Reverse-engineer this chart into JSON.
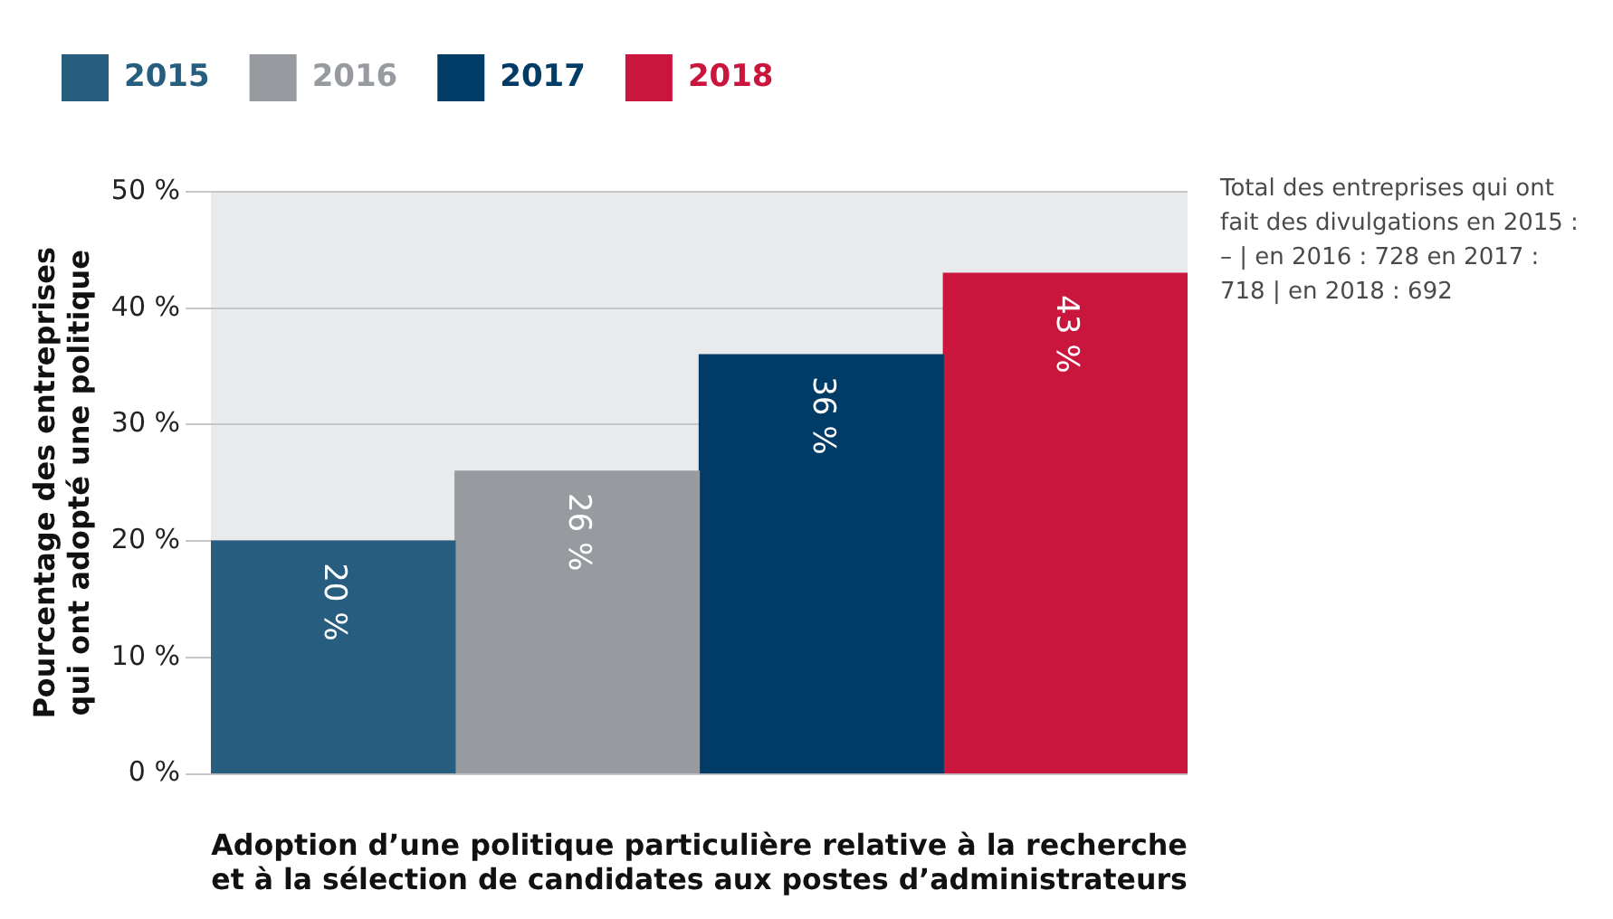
{
  "chart_data": {
    "type": "bar",
    "categories": [
      null
    ],
    "xlabel": "Adoption d’une politique particulière relative à la recherche et à la sélection de candidates aux postes d’administrateurs",
    "ylabel": "Pourcentage des entreprises qui ont adopté une politique",
    "series": [
      {
        "name": "2015",
        "color": "#275d7e",
        "values": [
          20
        ],
        "value_labels": [
          "20 %"
        ]
      },
      {
        "name": "2016",
        "color": "#979b9f",
        "values": [
          26
        ],
        "value_labels": [
          "26 %"
        ]
      },
      {
        "name": "2017",
        "color": "#013c67",
        "values": [
          36
        ],
        "value_labels": [
          "36 %"
        ]
      },
      {
        "name": "2018",
        "color": "#ca163d",
        "values": [
          43
        ],
        "value_labels": [
          "43 %"
        ]
      }
    ],
    "ylim": [
      0,
      50
    ],
    "yticks": [
      {
        "value": 0,
        "label": "0 %"
      },
      {
        "value": 10,
        "label": "10 %"
      },
      {
        "value": 20,
        "label": "20 %"
      },
      {
        "value": 30,
        "label": "30 %"
      },
      {
        "value": 40,
        "label": "40 %"
      },
      {
        "value": 50,
        "label": "50 %"
      }
    ],
    "grid": "y",
    "legend": "top left",
    "annotations": [
      "Total des entreprises qui ont fait des divulgations en 2015 : – | en 2016 : 728 en 2017 : 718 | en 2018 : 692"
    ]
  }
}
